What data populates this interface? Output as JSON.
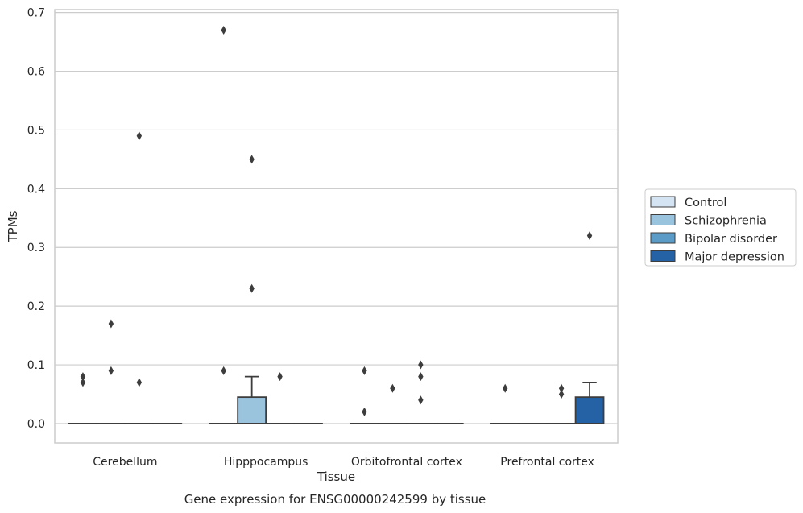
{
  "chart_data": {
    "type": "box",
    "xlabel": "Tissue",
    "ylabel": "TPMs",
    "caption": "Gene expression for ENSG00000242599 by tissue",
    "categories": [
      "Cerebellum",
      "Hipppocampus",
      "Orbitofrontal cortex",
      "Prefrontal cortex"
    ],
    "ylim": [
      -0.033,
      0.705
    ],
    "yticks": [
      0.0,
      0.1,
      0.2,
      0.3,
      0.4,
      0.5,
      0.6,
      0.7
    ],
    "ytick_labels": [
      "0.0",
      "0.1",
      "0.2",
      "0.3",
      "0.4",
      "0.5",
      "0.6",
      "0.7"
    ],
    "grid": "horizontal",
    "legend_position": "right",
    "series": [
      {
        "name": "Control",
        "color": "#d5e4f3",
        "boxes": [
          {
            "q1": 0,
            "median": 0,
            "q3": 0,
            "whislo": 0,
            "whishi": 0,
            "fliers": [
              0.08,
              0.07
            ]
          },
          {
            "q1": 0,
            "median": 0,
            "q3": 0,
            "whislo": 0,
            "whishi": 0,
            "fliers": [
              0.67,
              0.09
            ]
          },
          {
            "q1": 0,
            "median": 0,
            "q3": 0,
            "whislo": 0,
            "whishi": 0,
            "fliers": [
              0.09,
              0.02
            ]
          },
          {
            "q1": 0,
            "median": 0,
            "q3": 0,
            "whislo": 0,
            "whishi": 0,
            "fliers": [
              0.06
            ]
          }
        ]
      },
      {
        "name": "Schizophrenia",
        "color": "#9ac4de",
        "boxes": [
          {
            "q1": 0,
            "median": 0,
            "q3": 0,
            "whislo": 0,
            "whishi": 0,
            "fliers": [
              0.17,
              0.09
            ]
          },
          {
            "q1": 0,
            "median": 0,
            "q3": 0.045,
            "whislo": 0,
            "whishi": 0.08,
            "fliers": [
              0.45,
              0.23
            ]
          },
          {
            "q1": 0,
            "median": 0,
            "q3": 0,
            "whislo": 0,
            "whishi": 0,
            "fliers": [
              0.06
            ]
          },
          {
            "q1": 0,
            "median": 0,
            "q3": 0,
            "whislo": 0,
            "whishi": 0,
            "fliers": []
          }
        ]
      },
      {
        "name": "Bipolar disorder",
        "color": "#5a9bc8",
        "boxes": [
          {
            "q1": 0,
            "median": 0,
            "q3": 0,
            "whislo": 0,
            "whishi": 0,
            "fliers": [
              0.49,
              0.07
            ]
          },
          {
            "q1": 0,
            "median": 0,
            "q3": 0,
            "whislo": 0,
            "whishi": 0,
            "fliers": [
              0.08
            ]
          },
          {
            "q1": 0,
            "median": 0,
            "q3": 0,
            "whislo": 0,
            "whishi": 0,
            "fliers": [
              0.1,
              0.08,
              0.04
            ]
          },
          {
            "q1": 0,
            "median": 0,
            "q3": 0,
            "whislo": 0,
            "whishi": 0,
            "fliers": [
              0.06,
              0.05
            ]
          }
        ]
      },
      {
        "name": "Major depression",
        "color": "#2462a5",
        "boxes": [
          {
            "q1": 0,
            "median": 0,
            "q3": 0,
            "whislo": 0,
            "whishi": 0,
            "fliers": []
          },
          {
            "q1": 0,
            "median": 0,
            "q3": 0,
            "whislo": 0,
            "whishi": 0,
            "fliers": []
          },
          {
            "q1": 0,
            "median": 0,
            "q3": 0,
            "whislo": 0,
            "whishi": 0,
            "fliers": []
          },
          {
            "q1": 0,
            "median": 0,
            "q3": 0.045,
            "whislo": 0,
            "whishi": 0.07,
            "fliers": [
              0.32
            ]
          }
        ]
      }
    ]
  }
}
